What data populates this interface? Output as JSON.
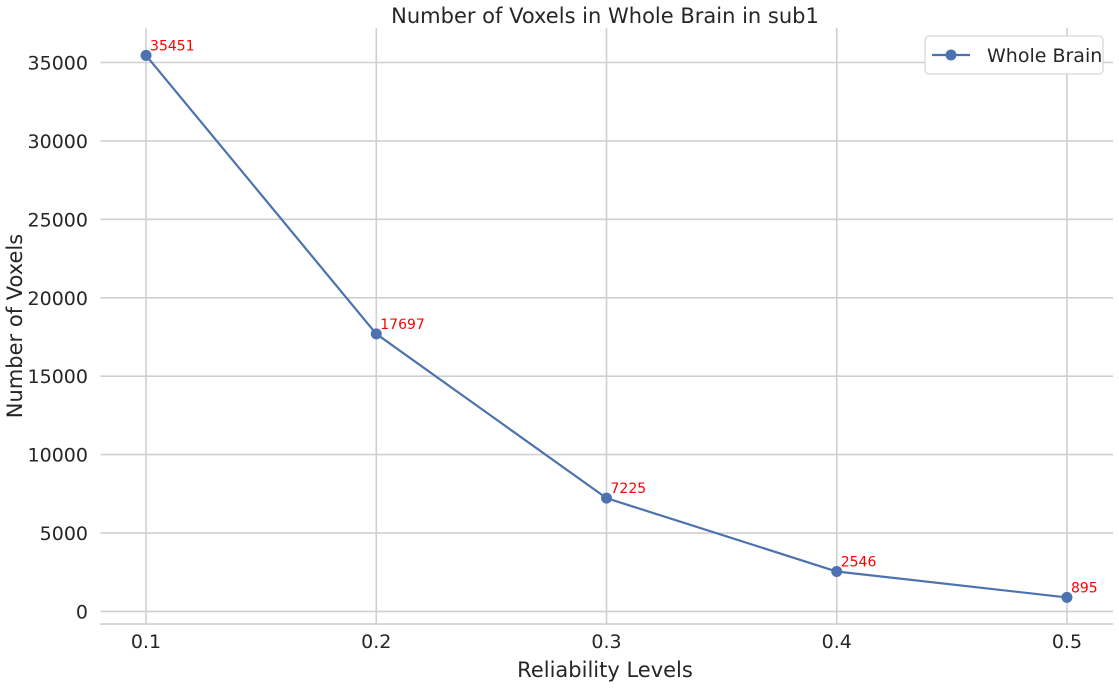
{
  "chart_data": {
    "type": "line",
    "title": "Number of Voxels in Whole Brain in sub1",
    "xlabel": "Reliability Levels",
    "ylabel": "Number of Voxels",
    "x": [
      0.1,
      0.2,
      0.3,
      0.4,
      0.5
    ],
    "x_tick_labels": [
      "0.1",
      "0.2",
      "0.3",
      "0.4",
      "0.5"
    ],
    "xlim": [
      0.08,
      0.52
    ],
    "y_ticks": [
      0,
      5000,
      10000,
      15000,
      20000,
      25000,
      30000,
      35000
    ],
    "y_tick_labels": [
      "0",
      "5000",
      "10000",
      "15000",
      "20000",
      "25000",
      "30000",
      "35000"
    ],
    "ylim": [
      -800,
      37200
    ],
    "grid": true,
    "legend_position": "top-right",
    "series": [
      {
        "name": "Whole Brain",
        "values": [
          35451,
          17697,
          7225,
          2546,
          895
        ],
        "color": "#4c72b0",
        "marker": "circle"
      }
    ],
    "data_labels": [
      "35451",
      "17697",
      "7225",
      "2546",
      "895"
    ],
    "data_label_color": "#ff0000"
  }
}
